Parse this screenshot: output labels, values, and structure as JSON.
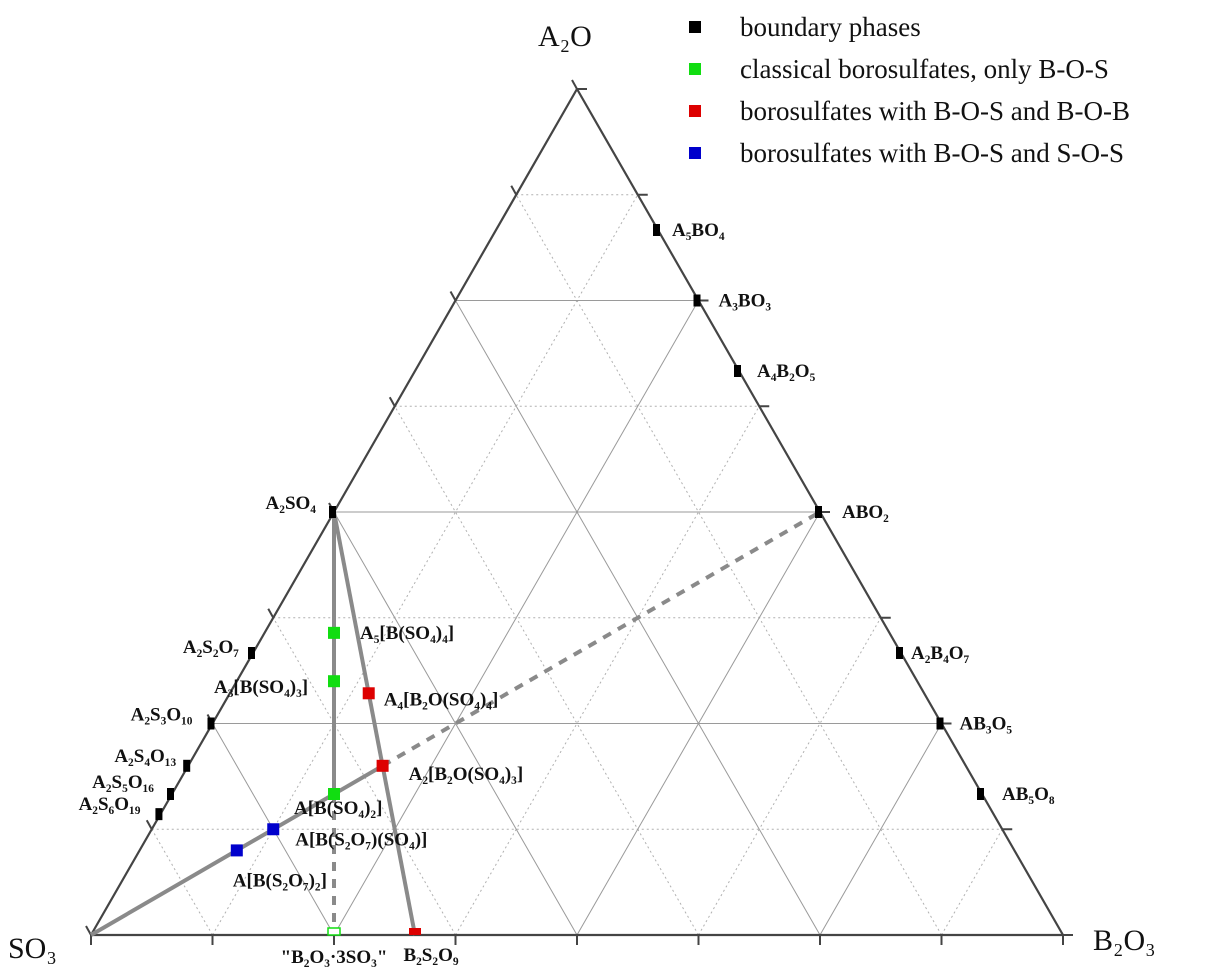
{
  "colors": {
    "boundary": "#000000",
    "classical": "#11dd11",
    "bob": "#dd0000",
    "sos": "#0000cc",
    "frame": "#444444",
    "tieline": "#8a8a8a",
    "grid_solid": "#9a9a9a",
    "grid_dotted": "#b0b0b0"
  },
  "vertices": {
    "top": {
      "label": "A₂O",
      "name": "A2O"
    },
    "left": {
      "label": "SO₃",
      "name": "SO3"
    },
    "right": {
      "label": "B₂O₃",
      "name": "B2O3"
    }
  },
  "legend": [
    {
      "key": "boundary",
      "label": "boundary phases",
      "color": "#000000"
    },
    {
      "key": "classical",
      "label": "classical borosulfates, only B-O-S",
      "color": "#11dd11"
    },
    {
      "key": "bob",
      "label": "borosulfates with B-O-S and B-O-B",
      "color": "#dd0000"
    },
    {
      "key": "sos",
      "label": "borosulfates with B-O-S and S-O-S",
      "color": "#0000cc"
    }
  ],
  "chart_data": {
    "type": "ternary",
    "components": [
      "A2O",
      "SO3",
      "B2O3"
    ],
    "points": [
      {
        "label": "A₅BO₄",
        "a2o": 10,
        "so3": 0,
        "b2o3": 2,
        "group": "boundary"
      },
      {
        "label": "A₃BO₃",
        "a2o": 3,
        "so3": 0,
        "b2o3": 1,
        "group": "boundary"
      },
      {
        "label": "A₄B₂O₅",
        "a2o": 2,
        "so3": 0,
        "b2o3": 1,
        "group": "boundary"
      },
      {
        "label": "ABO₂",
        "a2o": 1,
        "so3": 0,
        "b2o3": 1,
        "group": "boundary"
      },
      {
        "label": "A₂B₄O₇",
        "a2o": 1,
        "so3": 0,
        "b2o3": 2,
        "group": "boundary"
      },
      {
        "label": "AB₃O₅",
        "a2o": 1,
        "so3": 0,
        "b2o3": 3,
        "group": "boundary"
      },
      {
        "label": "AB₅O₈",
        "a2o": 1,
        "so3": 0,
        "b2o3": 5,
        "group": "boundary"
      },
      {
        "label": "A₂SO₄",
        "a2o": 1,
        "so3": 1,
        "b2o3": 0,
        "group": "boundary"
      },
      {
        "label": "A₂S₂O₇",
        "a2o": 1,
        "so3": 2,
        "b2o3": 0,
        "group": "boundary"
      },
      {
        "label": "A₂S₃O₁₀",
        "a2o": 1,
        "so3": 3,
        "b2o3": 0,
        "group": "boundary"
      },
      {
        "label": "A₂S₄O₁₃",
        "a2o": 1,
        "so3": 4,
        "b2o3": 0,
        "group": "boundary"
      },
      {
        "label": "A₂S₅O₁₆",
        "a2o": 1,
        "so3": 5,
        "b2o3": 0,
        "group": "boundary"
      },
      {
        "label": "A₂S₆O₁₉",
        "a2o": 1,
        "so3": 6,
        "b2o3": 0,
        "group": "boundary"
      },
      {
        "label": "A₅[B(SO₄)₄]",
        "a2o": 5,
        "so3": 8,
        "b2o3": 1,
        "group": "classical"
      },
      {
        "label": "A₃[B(SO₄)₃]",
        "a2o": 3,
        "so3": 6,
        "b2o3": 1,
        "group": "classical"
      },
      {
        "label": "A[B(SO₄)₂]",
        "a2o": 1,
        "so3": 4,
        "b2o3": 1,
        "group": "classical"
      },
      {
        "label": "\"B₂O₃·3SO₃\"",
        "a2o": 0,
        "so3": 3,
        "b2o3": 1,
        "group": "classical",
        "hollow": true
      },
      {
        "label": "A₄[B₂O(SO₄)₄]",
        "a2o": 2,
        "so3": 4,
        "b2o3": 1,
        "group": "bob"
      },
      {
        "label": "A₂[B₂O(SO₄)₃]",
        "a2o": 1,
        "so3": 3,
        "b2o3": 1,
        "group": "bob"
      },
      {
        "label": "B₂S₂O₉",
        "a2o": 0,
        "so3": 2,
        "b2o3": 1,
        "group": "bob"
      },
      {
        "label": "A[B(S₂O₇)(SO₄)]",
        "a2o": 1,
        "so3": 6,
        "b2o3": 1,
        "group": "sos"
      },
      {
        "label": "A[B(S₂O₇)₂]",
        "a2o": 1,
        "so3": 8,
        "b2o3": 1,
        "group": "sos"
      }
    ],
    "tie_lines": [
      {
        "from": "A₂SO₄",
        "to": "\"B₂O₃·3SO₃\"",
        "style": "solid-then-dotted"
      },
      {
        "from": "A₂SO₄",
        "to": "B₂S₂O₉",
        "style": "solid"
      },
      {
        "from": "SO₃",
        "to": "A₂[B₂O(SO₄)₃]",
        "style": "solid"
      },
      {
        "from": "A₂[B₂O(SO₄)₃]",
        "to": "ABO₂",
        "style": "dotted"
      }
    ],
    "grid": "on"
  }
}
